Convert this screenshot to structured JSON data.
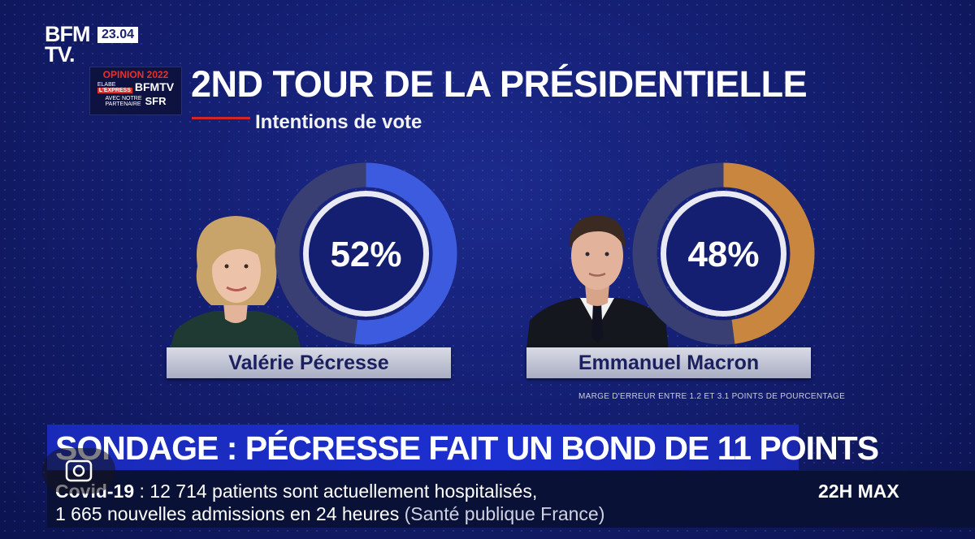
{
  "channel": {
    "logo": "BFM TV.",
    "logo_line1": "BFM",
    "logo_line2": "TV.",
    "clock": "23.04"
  },
  "opinion_box": {
    "title": "OPINION 2022",
    "elabe": "ELABE",
    "express": "L'EXPRESS",
    "bfmtv": "BFMTV",
    "partner_line1": "AVEC NOTRE",
    "partner_line2": "PARTENAIRE",
    "sfr": "SFR"
  },
  "poll": {
    "title": "2ND TOUR DE LA PRÉSIDENTIELLE",
    "subtitle": "Intentions de vote",
    "candidates": [
      {
        "name": "Valérie Pécresse",
        "percent_label": "52%",
        "percent": 52,
        "color": "#3d5bde"
      },
      {
        "name": "Emmanuel Macron",
        "percent_label": "48%",
        "percent": 48,
        "color": "#c8863e"
      }
    ],
    "margin_note": "MARGE D'ERREUR ENTRE 1.2 ET 3.1 POINTS DE POURCENTAGE"
  },
  "ticker": {
    "headline": "SONDAGE : PÉCRESSE FAIT UN BOND DE 11 POINTS",
    "topic": "Covid-19",
    "line1": " : 12 714 patients sont actuellement hospitalisés,",
    "line2": "1 665 nouvelles admissions en 24 heures",
    "source": " (Santé publique France)",
    "program": "22H MAX"
  },
  "colors": {
    "background": "#141f72",
    "headline_band": "#1c2fd0",
    "accent_red": "#d42525"
  }
}
